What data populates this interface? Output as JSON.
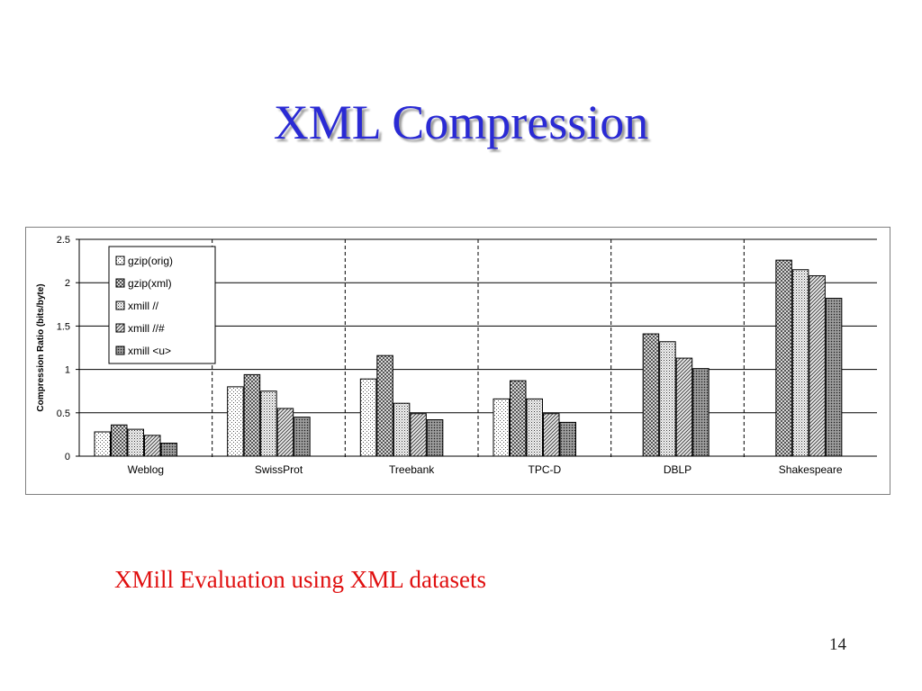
{
  "slide": {
    "title": "XML Compression",
    "caption": "XMill Evaluation using XML datasets",
    "page_number": "14"
  },
  "colors": {
    "title": "#2a2ad4",
    "caption": "#e01010",
    "bar_outline": "#000000"
  },
  "chart_data": {
    "type": "bar",
    "title": "",
    "xlabel": "",
    "ylabel": "Compression Ratio (bits/byte)",
    "ylim": [
      0,
      2.5
    ],
    "yticks": [
      "0",
      "0.5",
      "1",
      "1.5",
      "2",
      "2.5"
    ],
    "grid": "horizontal",
    "legend_position": "top-left",
    "categories": [
      "Weblog",
      "SwissProt",
      "Treebank",
      "TPC-D",
      "DBLP",
      "Shakespeare"
    ],
    "series": [
      {
        "name": "gzip(orig)",
        "pattern": "dots",
        "values": [
          0.28,
          0.8,
          0.89,
          0.66,
          null,
          null
        ]
      },
      {
        "name": "gzip(xml)",
        "pattern": "checker",
        "values": [
          0.36,
          0.94,
          1.16,
          0.87,
          1.41,
          2.26
        ]
      },
      {
        "name": "xmill //",
        "pattern": "dense-dots",
        "values": [
          0.31,
          0.75,
          0.61,
          0.66,
          1.32,
          2.15
        ]
      },
      {
        "name": "xmill //#",
        "pattern": "diagonal",
        "values": [
          0.24,
          0.55,
          0.49,
          0.49,
          1.13,
          2.08
        ]
      },
      {
        "name": "xmill <u>",
        "pattern": "dark-dots",
        "values": [
          0.15,
          0.45,
          0.42,
          0.39,
          1.01,
          1.82
        ]
      }
    ]
  }
}
